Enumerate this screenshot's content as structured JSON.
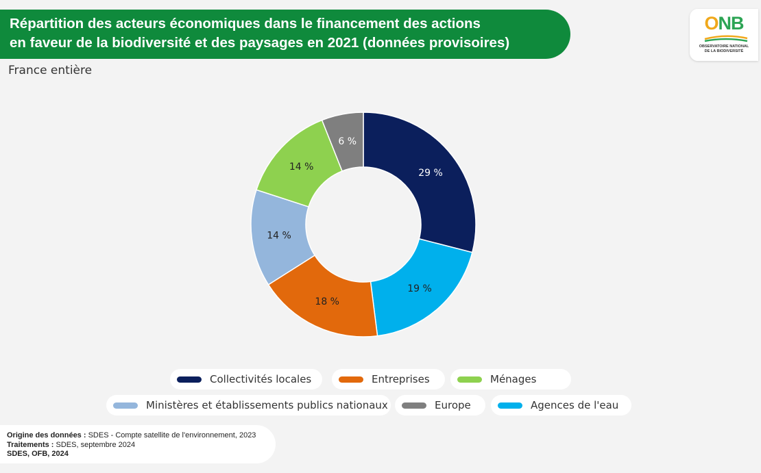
{
  "header": {
    "title_line1": "Répartition des acteurs économiques dans le financement des actions",
    "title_line2": "en faveur de la biodiversité et des paysages en 2021 (données provisoires)",
    "subtitle": "France entière"
  },
  "logo": {
    "letters_o": "O",
    "letters_nb": "NB",
    "tagline_1": "OBSERVATOIRE NATIONAL",
    "tagline_2": "DE LA BIODIVERSITÉ"
  },
  "chart_data": {
    "type": "pie",
    "title": "Répartition des acteurs économiques dans le financement des actions en faveur de la biodiversité et des paysages en 2021 (données provisoires)",
    "subtitle": "France entière",
    "donut": true,
    "legend_position": "bottom",
    "categories": [
      "Collectivités locales",
      "Agences de l'eau",
      "Entreprises",
      "Ministères et établissements publics nationaux",
      "Ménages",
      "Europe"
    ],
    "values": [
      29,
      19,
      18,
      14,
      14,
      6
    ],
    "labels": [
      "29 %",
      "19 %",
      "18 %",
      "14 %",
      "14 %",
      "6 %"
    ],
    "colors": [
      "#0b1f5c",
      "#00b0ec",
      "#e2690c",
      "#94b6dc",
      "#8ed14f",
      "#7f7f7f"
    ],
    "label_colors": [
      "#ffffff",
      "#222222",
      "#222222",
      "#222222",
      "#222222",
      "#ffffff"
    ]
  },
  "legend": [
    {
      "label": "Collectivités locales",
      "color": "#0b1f5c"
    },
    {
      "label": "Entreprises",
      "color": "#e2690c"
    },
    {
      "label": "Ménages",
      "color": "#8ed14f"
    },
    {
      "label": "Ministères et établissements publics nationaux",
      "color": "#94b6dc"
    },
    {
      "label": "Europe",
      "color": "#7f7f7f"
    },
    {
      "label": "Agences de l'eau",
      "color": "#00b0ec"
    }
  ],
  "footer": {
    "origin_label": "Origine des données :",
    "origin_value": " SDES - Compte satellite de l'environnement, 2023",
    "treatment_label": "Traitements :",
    "treatment_value": " SDES, septembre 2024",
    "credit": "SDES, OFB, 2024"
  }
}
